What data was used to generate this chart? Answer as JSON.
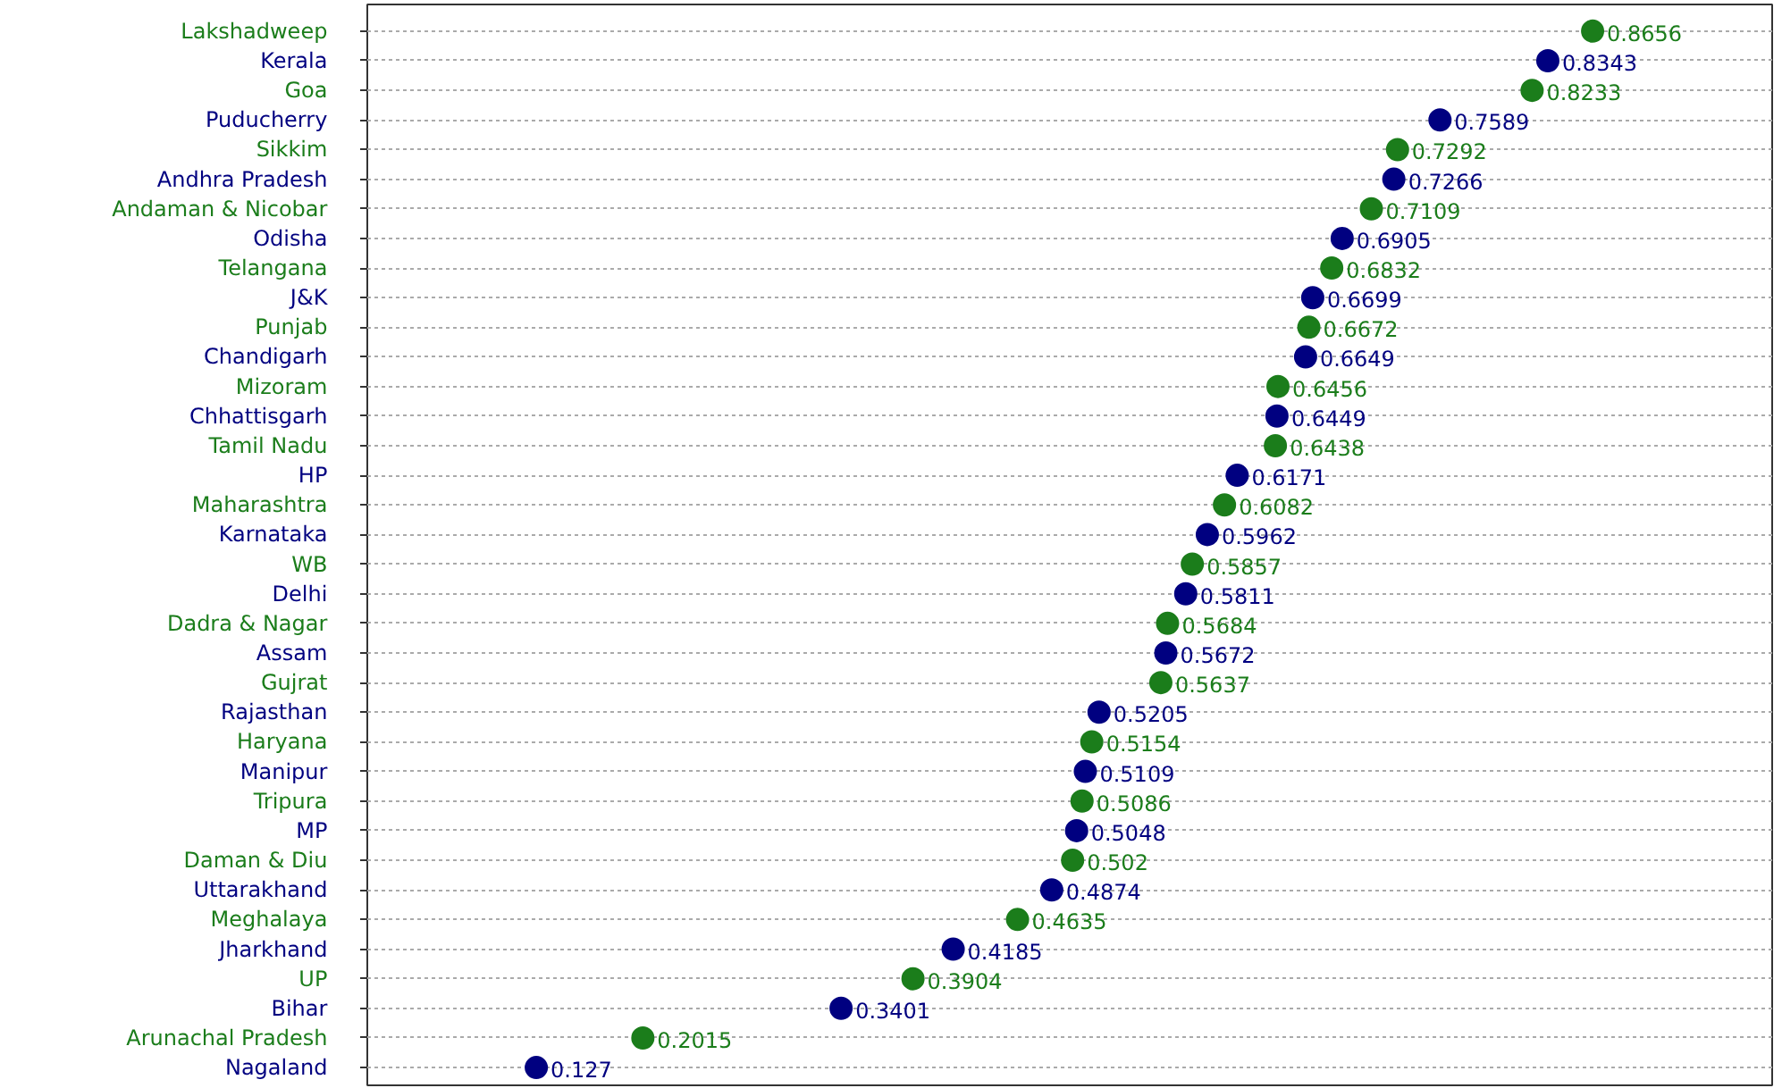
{
  "chart_data": {
    "type": "scatter",
    "orientation": "horizontal",
    "data_labels": true,
    "grid": "y",
    "marker": "circle",
    "categories": [
      "Lakshadweep",
      "Kerala",
      "Goa",
      "Puducherry",
      "Sikkim",
      "Andhra Pradesh",
      "Andaman & Nicobar",
      "Odisha",
      "Telangana",
      "J&K",
      "Punjab",
      "Chandigarh",
      "Mizoram",
      "Chhattisgarh",
      "Tamil Nadu",
      "HP",
      "Maharashtra",
      "Karnataka",
      "WB",
      "Delhi",
      "Dadra & Nagar",
      "Assam",
      "Gujrat",
      "Rajasthan",
      "Haryana",
      "Manipur",
      "Tripura",
      "MP",
      "Daman & Diu",
      "Uttarakhand",
      "Meghalaya",
      "Jharkhand",
      "UP",
      "Bihar",
      "Arunachal Pradesh",
      "Nagaland"
    ],
    "values": [
      0.8656,
      0.8343,
      0.8233,
      0.7589,
      0.7292,
      0.7266,
      0.7109,
      0.6905,
      0.6832,
      0.6699,
      0.6672,
      0.6649,
      0.6456,
      0.6449,
      0.6438,
      0.6171,
      0.6082,
      0.5962,
      0.5857,
      0.5811,
      0.5684,
      0.5672,
      0.5637,
      0.5205,
      0.5154,
      0.5109,
      0.5086,
      0.5048,
      0.502,
      0.4874,
      0.4635,
      0.4185,
      0.3904,
      0.3401,
      0.2015,
      0.127
    ],
    "value_labels": [
      "0.8656",
      "0.8343",
      "0.8233",
      "0.7589",
      "0.7292",
      "0.7266",
      "0.7109",
      "0.6905",
      "0.6832",
      "0.6699",
      "0.6672",
      "0.6649",
      "0.6456",
      "0.6449",
      "0.6438",
      "0.6171",
      "0.6082",
      "0.5962",
      "0.5857",
      "0.5811",
      "0.5684",
      "0.5672",
      "0.5637",
      "0.5205",
      "0.5154",
      "0.5109",
      "0.5086",
      "0.5048",
      "0.502",
      "0.4874",
      "0.4635",
      "0.4185",
      "0.3904",
      "0.3401",
      "0.2015",
      "0.127"
    ],
    "colors": [
      "#1b7d1b",
      "#000080",
      "#1b7d1b",
      "#000080",
      "#1b7d1b",
      "#000080",
      "#1b7d1b",
      "#000080",
      "#1b7d1b",
      "#000080",
      "#1b7d1b",
      "#000080",
      "#1b7d1b",
      "#000080",
      "#1b7d1b",
      "#000080",
      "#1b7d1b",
      "#000080",
      "#1b7d1b",
      "#000080",
      "#1b7d1b",
      "#000080",
      "#1b7d1b",
      "#000080",
      "#1b7d1b",
      "#000080",
      "#1b7d1b",
      "#000080",
      "#1b7d1b",
      "#000080",
      "#1b7d1b",
      "#000080",
      "#1b7d1b",
      "#000080",
      "#1b7d1b",
      "#000080"
    ]
  }
}
